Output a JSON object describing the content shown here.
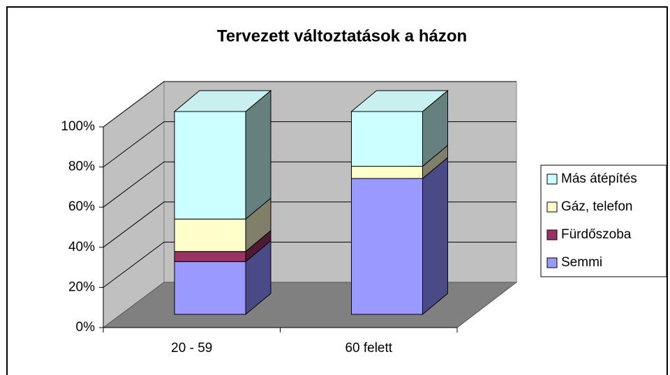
{
  "chart_data": {
    "type": "bar3d_stacked",
    "title": "Tervezett változtatások a házon",
    "categories": [
      "20 - 59",
      "60 felett"
    ],
    "series": [
      {
        "name": "Semmi",
        "color": "#9999ff",
        "side": "#4a4a86",
        "values": [
          26,
          67
        ]
      },
      {
        "name": "Fürdőszoba",
        "color": "#993366",
        "side": "#4e1a34",
        "values": [
          5,
          0
        ]
      },
      {
        "name": "Gáz, telefon",
        "color": "#ffffcc",
        "side": "#80806a",
        "values": [
          16,
          6
        ]
      },
      {
        "name": "Más átépítés",
        "color": "#ccffff",
        "side": "#668080",
        "values": [
          53,
          27
        ]
      }
    ],
    "ylim": [
      0,
      100
    ],
    "yticks": [
      {
        "value": 0,
        "label": "0%"
      },
      {
        "value": 20,
        "label": "20%"
      },
      {
        "value": 40,
        "label": "40%"
      },
      {
        "value": 60,
        "label": "60%"
      },
      {
        "value": 80,
        "label": "80%"
      },
      {
        "value": 100,
        "label": "100%"
      }
    ],
    "grid": true,
    "legend": "right"
  }
}
